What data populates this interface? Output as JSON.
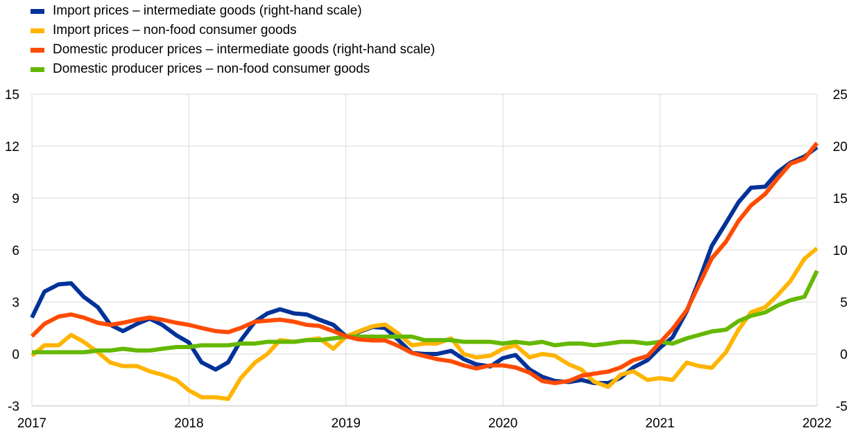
{
  "chart_data": {
    "type": "line",
    "title": "",
    "xlabel": "",
    "ylabel": "",
    "x_ticks": [
      "2017",
      "2018",
      "2019",
      "2020",
      "2021",
      "2022"
    ],
    "x_range": [
      2017,
      2022
    ],
    "ylim_left": [
      -3,
      15
    ],
    "ylim_right": [
      -5,
      25
    ],
    "y_ticks_left": [
      "15",
      "12",
      "9",
      "6",
      "3",
      "0",
      "-3"
    ],
    "y_ticks_right": [
      "25",
      "20",
      "15",
      "10",
      "5",
      "0",
      "-5"
    ],
    "grid": true,
    "legend_position": "top-left",
    "series": [
      {
        "name": "Import prices – intermediate goods (right-hand scale)",
        "color": "#003299",
        "axis": "right",
        "points": [
          [
            2017.0,
            3.5
          ],
          [
            2017.08,
            6.0
          ],
          [
            2017.17,
            6.7
          ],
          [
            2017.25,
            6.8
          ],
          [
            2017.33,
            5.5
          ],
          [
            2017.42,
            4.5
          ],
          [
            2017.5,
            2.8
          ],
          [
            2017.58,
            2.2
          ],
          [
            2017.67,
            2.9
          ],
          [
            2017.75,
            3.4
          ],
          [
            2017.83,
            2.8
          ],
          [
            2017.92,
            1.8
          ],
          [
            2018.0,
            1.1
          ],
          [
            2018.08,
            -0.8
          ],
          [
            2018.17,
            -1.5
          ],
          [
            2018.25,
            -0.8
          ],
          [
            2018.33,
            1.3
          ],
          [
            2018.42,
            3.1
          ],
          [
            2018.5,
            3.9
          ],
          [
            2018.58,
            4.3
          ],
          [
            2018.67,
            3.9
          ],
          [
            2018.75,
            3.8
          ],
          [
            2018.83,
            3.3
          ],
          [
            2018.92,
            2.8
          ],
          [
            2019.0,
            1.7
          ],
          [
            2019.08,
            2.1
          ],
          [
            2019.17,
            2.6
          ],
          [
            2019.25,
            2.5
          ],
          [
            2019.33,
            1.4
          ],
          [
            2019.42,
            0.1
          ],
          [
            2019.5,
            0.0
          ],
          [
            2019.58,
            0.0
          ],
          [
            2019.67,
            0.3
          ],
          [
            2019.75,
            -0.5
          ],
          [
            2019.83,
            -1.0
          ],
          [
            2019.92,
            -1.2
          ],
          [
            2020.0,
            -0.4
          ],
          [
            2020.08,
            -0.1
          ],
          [
            2020.17,
            -1.5
          ],
          [
            2020.25,
            -2.2
          ],
          [
            2020.33,
            -2.6
          ],
          [
            2020.42,
            -2.7
          ],
          [
            2020.5,
            -2.5
          ],
          [
            2020.58,
            -2.8
          ],
          [
            2020.67,
            -2.8
          ],
          [
            2020.75,
            -2.3
          ],
          [
            2020.83,
            -1.3
          ],
          [
            2020.92,
            -0.6
          ],
          [
            2021.0,
            0.6
          ],
          [
            2021.08,
            1.6
          ],
          [
            2021.17,
            4.1
          ],
          [
            2021.25,
            7.1
          ],
          [
            2021.33,
            10.4
          ],
          [
            2021.42,
            12.6
          ],
          [
            2021.5,
            14.6
          ],
          [
            2021.58,
            16.0
          ],
          [
            2021.67,
            16.1
          ],
          [
            2021.75,
            17.5
          ],
          [
            2021.83,
            18.4
          ],
          [
            2021.92,
            19.0
          ],
          [
            2022.0,
            19.9
          ]
        ]
      },
      {
        "name": "Import prices – non-food consumer goods",
        "color": "#FFB400",
        "axis": "left",
        "points": [
          [
            2017.0,
            -0.1
          ],
          [
            2017.08,
            0.5
          ],
          [
            2017.17,
            0.5
          ],
          [
            2017.25,
            1.1
          ],
          [
            2017.33,
            0.7
          ],
          [
            2017.42,
            0.1
          ],
          [
            2017.5,
            -0.5
          ],
          [
            2017.58,
            -0.7
          ],
          [
            2017.67,
            -0.7
          ],
          [
            2017.75,
            -1.0
          ],
          [
            2017.83,
            -1.2
          ],
          [
            2017.92,
            -1.5
          ],
          [
            2018.0,
            -2.1
          ],
          [
            2018.08,
            -2.5
          ],
          [
            2018.17,
            -2.5
          ],
          [
            2018.25,
            -2.6
          ],
          [
            2018.33,
            -1.4
          ],
          [
            2018.42,
            -0.5
          ],
          [
            2018.5,
            0.0
          ],
          [
            2018.58,
            0.8
          ],
          [
            2018.67,
            0.7
          ],
          [
            2018.75,
            0.8
          ],
          [
            2018.83,
            0.9
          ],
          [
            2018.92,
            0.3
          ],
          [
            2019.0,
            1.0
          ],
          [
            2019.08,
            1.3
          ],
          [
            2019.17,
            1.6
          ],
          [
            2019.25,
            1.7
          ],
          [
            2019.33,
            1.2
          ],
          [
            2019.42,
            0.5
          ],
          [
            2019.5,
            0.6
          ],
          [
            2019.58,
            0.6
          ],
          [
            2019.67,
            0.9
          ],
          [
            2019.75,
            0.0
          ],
          [
            2019.83,
            -0.2
          ],
          [
            2019.92,
            -0.1
          ],
          [
            2020.0,
            0.3
          ],
          [
            2020.08,
            0.5
          ],
          [
            2020.17,
            -0.2
          ],
          [
            2020.25,
            0.0
          ],
          [
            2020.33,
            -0.1
          ],
          [
            2020.42,
            -0.6
          ],
          [
            2020.5,
            -0.9
          ],
          [
            2020.58,
            -1.6
          ],
          [
            2020.67,
            -1.9
          ],
          [
            2020.75,
            -1.2
          ],
          [
            2020.83,
            -1.0
          ],
          [
            2020.92,
            -1.5
          ],
          [
            2021.0,
            -1.4
          ],
          [
            2021.08,
            -1.5
          ],
          [
            2021.17,
            -0.5
          ],
          [
            2021.25,
            -0.7
          ],
          [
            2021.33,
            -0.8
          ],
          [
            2021.42,
            0.1
          ],
          [
            2021.5,
            1.4
          ],
          [
            2021.58,
            2.4
          ],
          [
            2021.67,
            2.7
          ],
          [
            2021.75,
            3.4
          ],
          [
            2021.83,
            4.2
          ],
          [
            2021.92,
            5.5
          ],
          [
            2022.0,
            6.1
          ]
        ]
      },
      {
        "name": "Domestic producer prices – intermediate goods (right-hand scale)",
        "color": "#FF4B00",
        "axis": "right",
        "points": [
          [
            2017.0,
            1.7
          ],
          [
            2017.08,
            2.9
          ],
          [
            2017.17,
            3.6
          ],
          [
            2017.25,
            3.8
          ],
          [
            2017.33,
            3.5
          ],
          [
            2017.42,
            3.0
          ],
          [
            2017.5,
            2.8
          ],
          [
            2017.58,
            3.0
          ],
          [
            2017.67,
            3.3
          ],
          [
            2017.75,
            3.5
          ],
          [
            2017.83,
            3.3
          ],
          [
            2017.92,
            3.0
          ],
          [
            2018.0,
            2.8
          ],
          [
            2018.08,
            2.5
          ],
          [
            2018.17,
            2.2
          ],
          [
            2018.25,
            2.1
          ],
          [
            2018.33,
            2.5
          ],
          [
            2018.42,
            3.1
          ],
          [
            2018.5,
            3.2
          ],
          [
            2018.58,
            3.3
          ],
          [
            2018.67,
            3.1
          ],
          [
            2018.75,
            2.8
          ],
          [
            2018.83,
            2.7
          ],
          [
            2018.92,
            2.2
          ],
          [
            2019.0,
            1.7
          ],
          [
            2019.08,
            1.4
          ],
          [
            2019.17,
            1.3
          ],
          [
            2019.25,
            1.3
          ],
          [
            2019.33,
            0.8
          ],
          [
            2019.42,
            0.1
          ],
          [
            2019.5,
            -0.2
          ],
          [
            2019.58,
            -0.5
          ],
          [
            2019.67,
            -0.7
          ],
          [
            2019.75,
            -1.1
          ],
          [
            2019.83,
            -1.4
          ],
          [
            2019.92,
            -1.1
          ],
          [
            2020.0,
            -1.1
          ],
          [
            2020.08,
            -1.3
          ],
          [
            2020.17,
            -1.8
          ],
          [
            2020.25,
            -2.6
          ],
          [
            2020.33,
            -2.8
          ],
          [
            2020.42,
            -2.6
          ],
          [
            2020.5,
            -2.1
          ],
          [
            2020.58,
            -1.9
          ],
          [
            2020.67,
            -1.7
          ],
          [
            2020.75,
            -1.3
          ],
          [
            2020.83,
            -0.6
          ],
          [
            2020.92,
            -0.2
          ],
          [
            2021.0,
            1.1
          ],
          [
            2021.08,
            2.4
          ],
          [
            2021.17,
            4.2
          ],
          [
            2021.25,
            6.7
          ],
          [
            2021.33,
            9.2
          ],
          [
            2021.42,
            10.8
          ],
          [
            2021.5,
            12.8
          ],
          [
            2021.58,
            14.3
          ],
          [
            2021.67,
            15.4
          ],
          [
            2021.75,
            16.9
          ],
          [
            2021.83,
            18.3
          ],
          [
            2021.92,
            18.8
          ],
          [
            2022.0,
            20.3
          ]
        ]
      },
      {
        "name": "Domestic producer prices – non-food consumer goods",
        "color": "#65B800",
        "axis": "left",
        "points": [
          [
            2017.0,
            0.1
          ],
          [
            2017.08,
            0.1
          ],
          [
            2017.17,
            0.1
          ],
          [
            2017.25,
            0.1
          ],
          [
            2017.33,
            0.1
          ],
          [
            2017.42,
            0.2
          ],
          [
            2017.5,
            0.2
          ],
          [
            2017.58,
            0.3
          ],
          [
            2017.67,
            0.2
          ],
          [
            2017.75,
            0.2
          ],
          [
            2017.83,
            0.3
          ],
          [
            2017.92,
            0.4
          ],
          [
            2018.0,
            0.4
          ],
          [
            2018.08,
            0.5
          ],
          [
            2018.17,
            0.5
          ],
          [
            2018.25,
            0.5
          ],
          [
            2018.33,
            0.6
          ],
          [
            2018.42,
            0.6
          ],
          [
            2018.5,
            0.7
          ],
          [
            2018.58,
            0.7
          ],
          [
            2018.67,
            0.7
          ],
          [
            2018.75,
            0.8
          ],
          [
            2018.83,
            0.8
          ],
          [
            2018.92,
            0.9
          ],
          [
            2019.0,
            1.0
          ],
          [
            2019.08,
            1.0
          ],
          [
            2019.17,
            1.0
          ],
          [
            2019.25,
            1.0
          ],
          [
            2019.33,
            1.0
          ],
          [
            2019.42,
            1.0
          ],
          [
            2019.5,
            0.8
          ],
          [
            2019.58,
            0.8
          ],
          [
            2019.67,
            0.8
          ],
          [
            2019.75,
            0.7
          ],
          [
            2019.83,
            0.7
          ],
          [
            2019.92,
            0.7
          ],
          [
            2020.0,
            0.6
          ],
          [
            2020.08,
            0.7
          ],
          [
            2020.17,
            0.6
          ],
          [
            2020.25,
            0.7
          ],
          [
            2020.33,
            0.5
          ],
          [
            2020.42,
            0.6
          ],
          [
            2020.5,
            0.6
          ],
          [
            2020.58,
            0.5
          ],
          [
            2020.67,
            0.6
          ],
          [
            2020.75,
            0.7
          ],
          [
            2020.83,
            0.7
          ],
          [
            2020.92,
            0.6
          ],
          [
            2021.0,
            0.7
          ],
          [
            2021.08,
            0.6
          ],
          [
            2021.17,
            0.9
          ],
          [
            2021.25,
            1.1
          ],
          [
            2021.33,
            1.3
          ],
          [
            2021.42,
            1.4
          ],
          [
            2021.5,
            1.9
          ],
          [
            2021.58,
            2.2
          ],
          [
            2021.67,
            2.4
          ],
          [
            2021.75,
            2.8
          ],
          [
            2021.83,
            3.1
          ],
          [
            2021.92,
            3.3
          ],
          [
            2022.0,
            4.8
          ]
        ]
      }
    ]
  }
}
